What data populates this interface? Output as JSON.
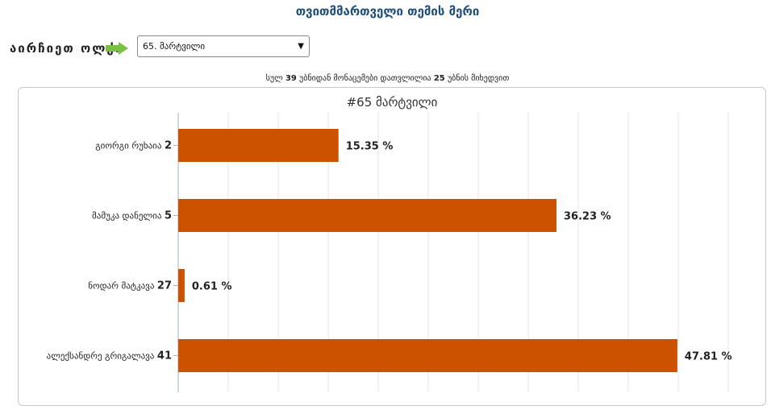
{
  "header": {
    "title": "თვითმმართველი თემის მერი"
  },
  "district_picker": {
    "label": "აირჩიეთ ოლქი",
    "selected": "65. მარტვილი"
  },
  "summary": {
    "prefix": "სულ",
    "total": "39",
    "middle": "უბნიდან მონაცემები დათვლილია",
    "counted": "25",
    "suffix": "უბნის მიხედვით"
  },
  "colors": {
    "bar": "#cc5200",
    "title": "#1f4e79",
    "grid": "#e6e6e6"
  },
  "chart_data": {
    "type": "bar",
    "orientation": "horizontal",
    "title": "#65 მარტვილი",
    "categories": [
      {
        "name": "გიორგი რუხაია",
        "number": "2"
      },
      {
        "name": "მამუკა დანელია",
        "number": "5"
      },
      {
        "name": "ნოდარ მატკავა",
        "number": "27"
      },
      {
        "name": "ალექსანდრე გრიგალავა",
        "number": "41"
      }
    ],
    "values": [
      15.35,
      36.23,
      0.61,
      47.81
    ],
    "value_labels": [
      "15.35 %",
      "36.23 %",
      "0.61 %",
      "47.81 %"
    ],
    "unit": "%",
    "xlim": [
      0,
      55
    ],
    "grid": true,
    "legend": "none"
  }
}
